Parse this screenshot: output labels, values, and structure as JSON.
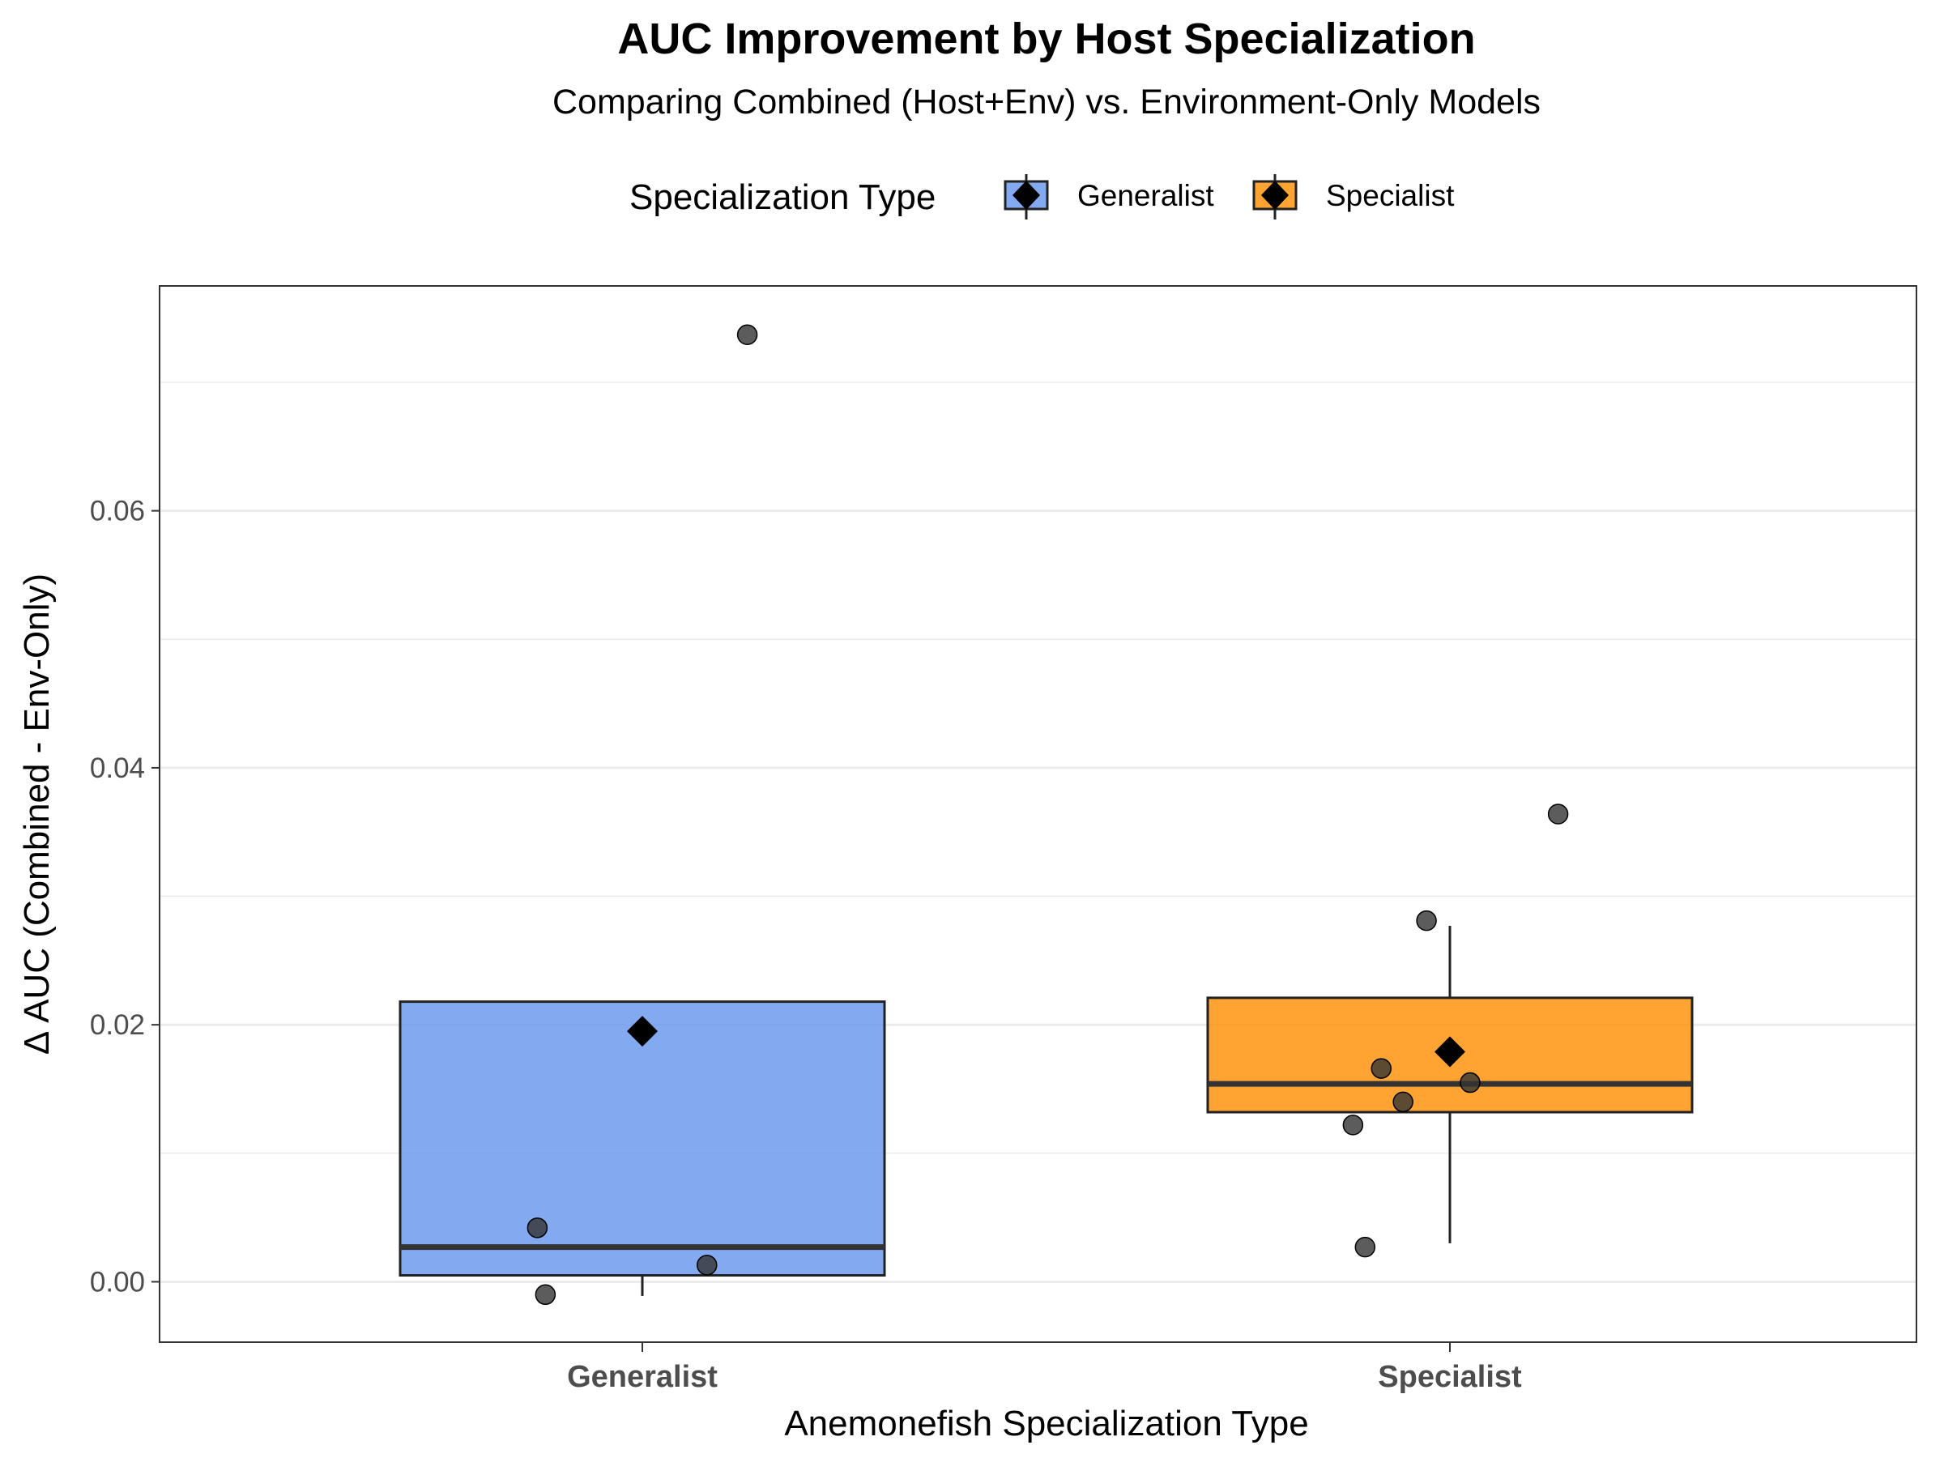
{
  "chart_data": {
    "type": "box",
    "title": "AUC Improvement by Host Specialization",
    "subtitle": "Comparing Combined (Host+Env) vs. Environment-Only Models",
    "xlabel": "Anemonefish Specialization Type",
    "ylabel": "Δ AUC (Combined - Env-Only)",
    "categories": [
      "Generalist",
      "Specialist"
    ],
    "legend": {
      "title": "Specialization Type",
      "position": "top",
      "entries": [
        "Generalist",
        "Specialist"
      ]
    },
    "ylim": [
      -0.0047,
      0.0775
    ],
    "y_ticks": [
      0.0,
      0.02,
      0.04,
      0.06
    ],
    "y_tick_labels": [
      "0.00",
      "0.02",
      "0.04",
      "0.06"
    ],
    "grid": true,
    "colors": {
      "Generalist": "#6495ED",
      "Specialist": "#FF8C00",
      "points": "#333333",
      "mean_marker": "#000000"
    },
    "series": [
      {
        "name": "Generalist",
        "box": {
          "q1": 0.0005,
          "median": 0.0027,
          "q3": 0.0218,
          "whisker_low": -0.0011,
          "whisker_high": 0.0218
        },
        "mean": 0.0195,
        "points": [
          {
            "jitter": -0.13,
            "y": 0.0042
          },
          {
            "jitter": -0.12,
            "y": -0.001
          },
          {
            "jitter": 0.08,
            "y": 0.0013
          },
          {
            "jitter": 0.13,
            "y": 0.0737
          }
        ]
      },
      {
        "name": "Specialist",
        "box": {
          "q1": 0.0132,
          "median": 0.0154,
          "q3": 0.0221,
          "whisker_low": 0.003,
          "whisker_high": 0.0277
        },
        "mean": 0.0179,
        "points": [
          {
            "jitter": -0.12,
            "y": 0.0122
          },
          {
            "jitter": -0.105,
            "y": 0.0027
          },
          {
            "jitter": -0.085,
            "y": 0.0166
          },
          {
            "jitter": -0.058,
            "y": 0.014
          },
          {
            "jitter": -0.029,
            "y": 0.0281
          },
          {
            "jitter": 0.025,
            "y": 0.0155
          },
          {
            "jitter": 0.134,
            "y": 0.0364
          }
        ]
      }
    ]
  }
}
